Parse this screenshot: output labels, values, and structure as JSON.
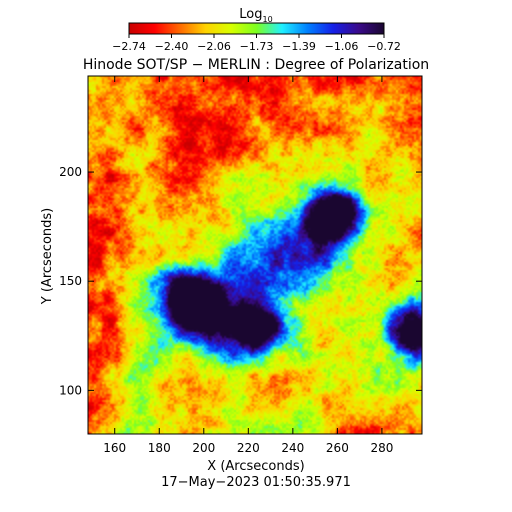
{
  "colorbar": {
    "label_main": "Log",
    "label_sub": "10",
    "ticks": [
      "−2.74",
      "−2.40",
      "−2.06",
      "−1.73",
      "−1.39",
      "−1.06",
      "−0.72"
    ],
    "range": [
      -2.74,
      -0.72
    ],
    "colormap": [
      "#c80000",
      "#ff0000",
      "#ff6a00",
      "#ffd200",
      "#d8ff00",
      "#7dff20",
      "#20f0ff",
      "#0080ff",
      "#1520e8",
      "#3a0a8a",
      "#1a0630"
    ]
  },
  "title": "Hinode SOT/SP − MERLIN : Degree of Polarization",
  "xaxis": {
    "label": "X (Arcseconds)",
    "range": [
      148,
      298
    ],
    "ticks": [
      "160",
      "180",
      "200",
      "220",
      "240",
      "260",
      "280"
    ]
  },
  "yaxis": {
    "label": "Y (Arcseconds)",
    "range": [
      80,
      244
    ],
    "ticks": [
      "100",
      "150",
      "200"
    ]
  },
  "timestamp": "17−May−2023 01:50:35.971",
  "map": {
    "style": "noisy polarization map",
    "features": [
      {
        "name": "sunspot-upper-right",
        "x": 258,
        "y": 180,
        "level": 1.0
      },
      {
        "name": "sunspot-center-left",
        "x": 195,
        "y": 141,
        "level": 1.0
      },
      {
        "name": "sunspot-lower-mid",
        "x": 222,
        "y": 129,
        "level": 0.9
      },
      {
        "name": "sunspot-right-edge",
        "x": 294,
        "y": 127,
        "level": 0.85
      }
    ]
  }
}
